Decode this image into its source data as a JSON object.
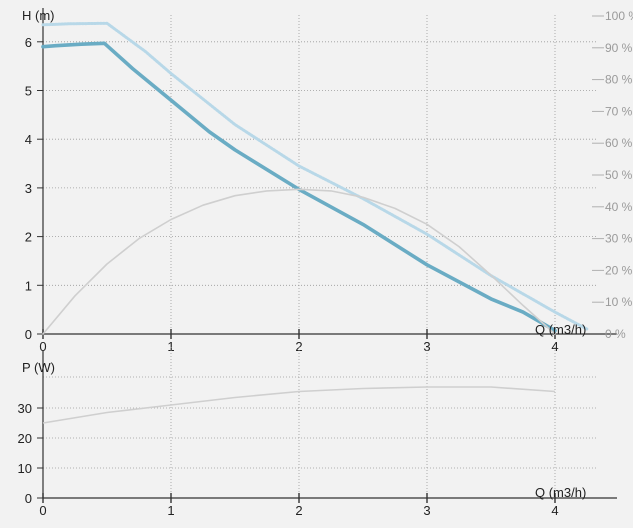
{
  "chart_data": [
    {
      "type": "line",
      "ylabel": "H (m)",
      "xlabel": "Q (m3/h)",
      "xlim": [
        0,
        4.25
      ],
      "ylim": [
        0,
        6.5
      ],
      "x_ticks": [
        "0",
        "1",
        "2",
        "3",
        "4"
      ],
      "y_ticks": [
        "0",
        "1",
        "2",
        "3",
        "4",
        "5",
        "6"
      ],
      "y2_ticks": [
        "0 %",
        "10 %",
        "20 %",
        "30 %",
        "40 %",
        "50 %",
        "60 %",
        "70 %",
        "80 %",
        "90 %",
        "100 %"
      ],
      "y2lim": [
        0,
        100
      ],
      "grid": true,
      "series": [
        {
          "key": "head-curve",
          "axis": "left",
          "color": "#6aacc4",
          "x": [
            0,
            0.1,
            0.3,
            0.48,
            0.7,
            1.0,
            1.3,
            1.5,
            2.0,
            2.5,
            3.0,
            3.5,
            3.75,
            4.0
          ],
          "y": [
            5.9,
            5.92,
            5.95,
            5.97,
            5.45,
            4.8,
            4.15,
            3.78,
            2.97,
            2.25,
            1.42,
            0.72,
            0.45,
            0.07
          ]
        },
        {
          "key": "head-curve-max",
          "axis": "left",
          "color": "#b8d8e8",
          "x": [
            0,
            0.2,
            0.5,
            0.8,
            1.0,
            1.5,
            2.0,
            2.5,
            3.0,
            3.5,
            4.0,
            4.25
          ],
          "y": [
            6.35,
            6.37,
            6.38,
            5.8,
            5.35,
            4.3,
            3.45,
            2.78,
            2.05,
            1.2,
            0.45,
            0.1
          ]
        },
        {
          "key": "efficiency-curve",
          "axis": "right",
          "color": "#cfcfcf",
          "x": [
            0,
            0.25,
            0.5,
            0.75,
            1.0,
            1.25,
            1.5,
            1.75,
            2.0,
            2.25,
            2.5,
            2.75,
            3.0,
            3.25,
            3.5,
            3.75,
            4.0
          ],
          "y": [
            0,
            12,
            22,
            30,
            36,
            40.5,
            43.5,
            45,
            45.5,
            45,
            43,
            39.5,
            34.5,
            27.5,
            18.5,
            9,
            0
          ]
        }
      ]
    },
    {
      "type": "line",
      "ylabel": "P (W)",
      "xlabel": "Q (m3/h)",
      "xlim": [
        0,
        4.25
      ],
      "ylim": [
        0,
        38
      ],
      "x_ticks": [
        "0",
        "1",
        "2",
        "3",
        "4"
      ],
      "y_ticks": [
        "0",
        "10",
        "20",
        "30"
      ],
      "grid": true,
      "series": [
        {
          "key": "power-curve",
          "color": "#cfcfcf",
          "x": [
            0,
            0.5,
            1.0,
            1.5,
            2.0,
            2.5,
            3.0,
            3.5,
            4.0
          ],
          "y": [
            25,
            28.5,
            31,
            33.5,
            35.5,
            36.5,
            37,
            37,
            35.5
          ]
        }
      ]
    }
  ]
}
